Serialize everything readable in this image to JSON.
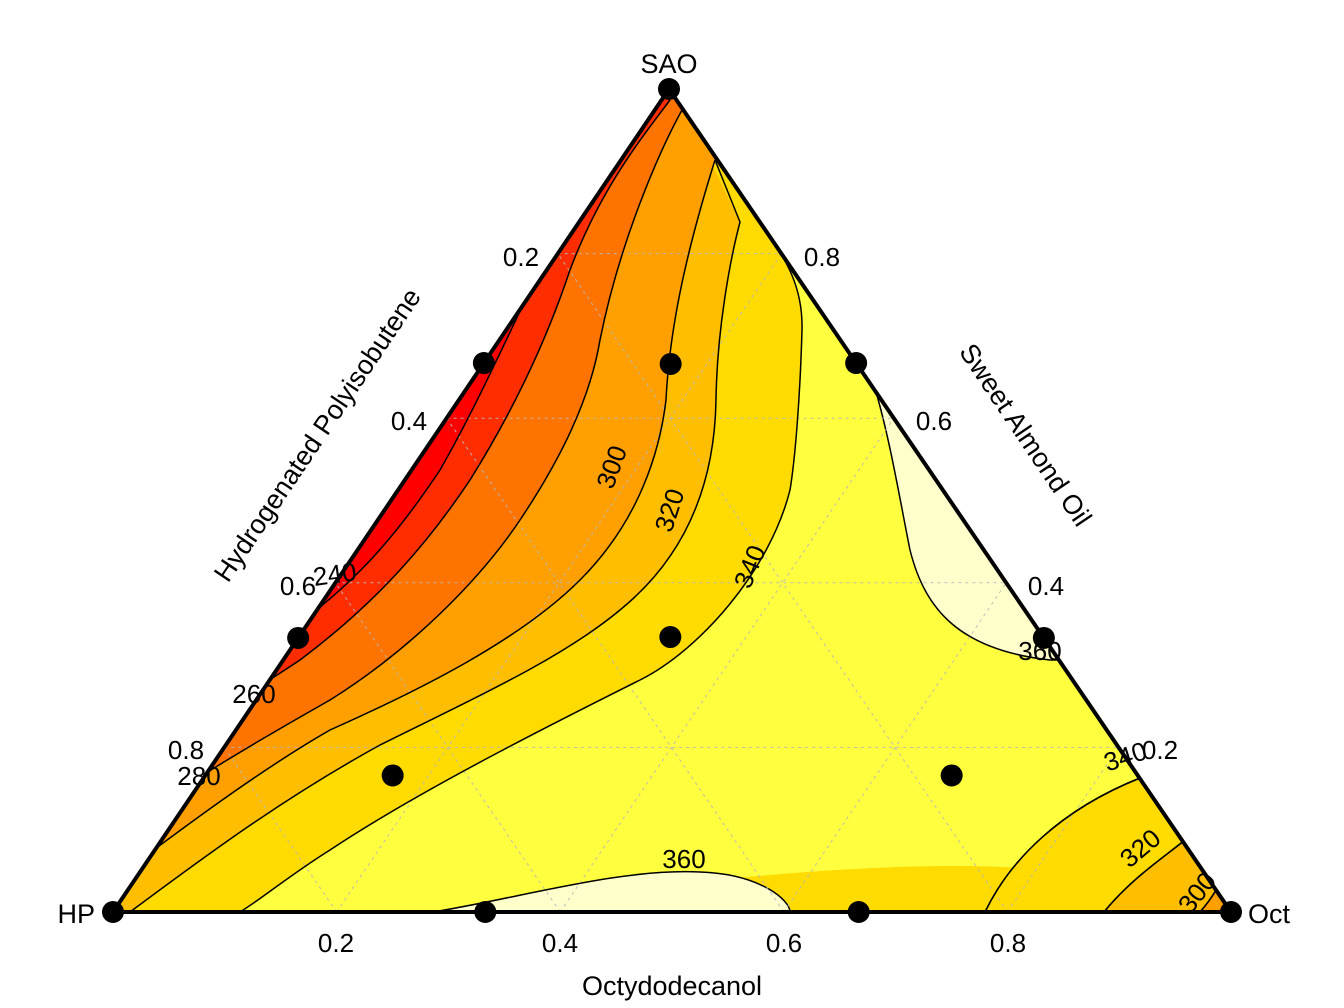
{
  "chart_data": {
    "type": "ternary-contour",
    "vertices": {
      "top": "SAO",
      "left": "HP",
      "right": "Oct"
    },
    "axis_titles": {
      "left": "Hydrogenated Polyisobutene",
      "right": "Sweet Almond Oil",
      "bottom": "Octydodecanol"
    },
    "ticks": {
      "left": [
        "0.2",
        "0.4",
        "0.6",
        "0.8"
      ],
      "right": [
        "0.8",
        "0.6",
        "0.4",
        "0.2"
      ],
      "bottom": [
        "0.2",
        "0.4",
        "0.6",
        "0.8"
      ]
    },
    "contour_levels": [
      240,
      260,
      280,
      300,
      320,
      340,
      360
    ],
    "contour_labels": [
      "240",
      "260",
      "280",
      "300",
      "320",
      "340",
      "360",
      "360",
      "340",
      "320",
      "300"
    ],
    "fill_colors": [
      "#ff0000",
      "#ff2d00",
      "#ff7400",
      "#ff9f00",
      "#ffbe00",
      "#ffdb00",
      "#ffff40",
      "#ffffcc"
    ],
    "design_points": [
      {
        "SAO": 1.0,
        "HP": 0.0,
        "Oct": 0.0
      },
      {
        "SAO": 0.0,
        "HP": 1.0,
        "Oct": 0.0
      },
      {
        "SAO": 0.0,
        "HP": 0.0,
        "Oct": 1.0
      },
      {
        "SAO": 0.667,
        "HP": 0.333,
        "Oct": 0.0
      },
      {
        "SAO": 0.333,
        "HP": 0.667,
        "Oct": 0.0
      },
      {
        "SAO": 0.667,
        "HP": 0.0,
        "Oct": 0.333
      },
      {
        "SAO": 0.333,
        "HP": 0.0,
        "Oct": 0.667
      },
      {
        "SAO": 0.0,
        "HP": 0.667,
        "Oct": 0.333
      },
      {
        "SAO": 0.0,
        "HP": 0.333,
        "Oct": 0.667
      },
      {
        "SAO": 0.667,
        "HP": 0.167,
        "Oct": 0.167
      },
      {
        "SAO": 0.333,
        "HP": 0.333,
        "Oct": 0.333
      },
      {
        "SAO": 0.167,
        "HP": 0.667,
        "Oct": 0.167
      },
      {
        "SAO": 0.167,
        "HP": 0.167,
        "Oct": 0.667
      }
    ]
  }
}
